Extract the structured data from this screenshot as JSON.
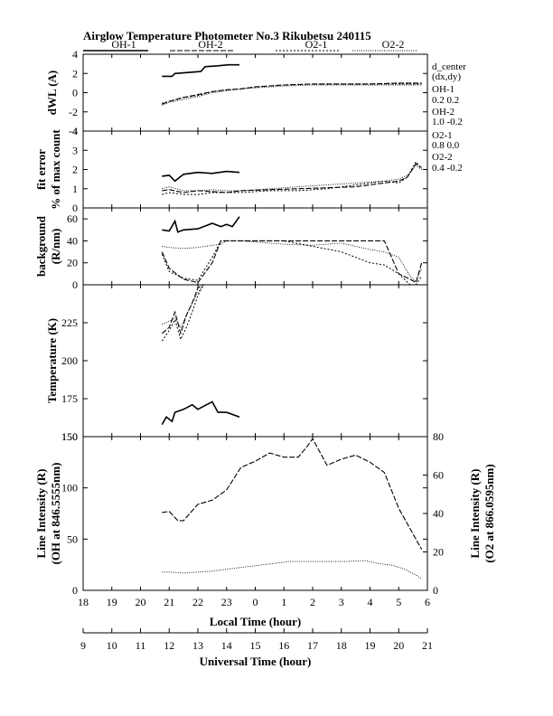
{
  "header": {
    "title": "Airglow Temperature Photometer No.3   Rikubetsu    240115"
  },
  "legend": [
    {
      "name": "OH-1",
      "dash": ""
    },
    {
      "name": "OH-2",
      "dash": "6,2"
    },
    {
      "name": "O2-1",
      "dash": "2,2"
    },
    {
      "name": "O2-2",
      "dash": "1,1.5"
    }
  ],
  "side_text": {
    "dcenter": "d_center",
    "dxdy": "(dx,dy)",
    "oh1_label": "OH-1",
    "oh1_values": "0.2   0.2",
    "oh2_label": "OH-2",
    "oh2_values": "1.0   -0.2",
    "o21_label": "O2-1",
    "o21_values": "0.8   0.0",
    "o22_label": "O2-2",
    "o22_values": "0.4   -0.2"
  },
  "axes": {
    "lt_ticks": [
      "18",
      "19",
      "20",
      "21",
      "22",
      "23",
      "0",
      "1",
      "2",
      "3",
      "4",
      "5",
      "6"
    ],
    "ut_ticks": [
      "9",
      "10",
      "11",
      "12",
      "13",
      "14",
      "15",
      "16",
      "17",
      "18",
      "19",
      "20",
      "21"
    ],
    "xlabel_lt": "Local Time (hour)",
    "xlabel_ut": "Universal Time (hour)"
  },
  "chart_data": [
    {
      "type": "line",
      "panel": "dwl",
      "ylabel": "dWL (A)",
      "ylim": [
        -4,
        4
      ],
      "yticks": [
        "4",
        "2",
        "0",
        "-2",
        "-4"
      ],
      "ytick_values": [
        4,
        2,
        0,
        -2,
        -4
      ],
      "series": [
        {
          "name": "OH-1",
          "x": [
            20.75,
            21.1,
            21.2,
            22.1,
            22.25,
            22.7,
            23.05,
            23.45
          ],
          "y": [
            1.7,
            1.7,
            2.0,
            2.2,
            2.7,
            2.8,
            2.9,
            2.9
          ]
        },
        {
          "name": "OH-2",
          "x": [
            20.75,
            21.0,
            21.5,
            22.0,
            22.5,
            23.0,
            23.5,
            24.0,
            25.0,
            26.0,
            27.0,
            28.0,
            29.0,
            29.8
          ],
          "y": [
            -1.2,
            -0.9,
            -0.5,
            -0.2,
            0.1,
            0.3,
            0.4,
            0.6,
            0.8,
            0.9,
            0.9,
            0.9,
            1.0,
            1.0
          ]
        },
        {
          "name": "O2-1",
          "x": [
            20.75,
            21.0,
            21.5,
            22.0,
            22.5,
            23.0,
            23.5,
            24.0,
            25.0,
            26.0,
            27.0,
            28.0,
            29.0,
            29.8
          ],
          "y": [
            -1.1,
            -0.9,
            -0.5,
            -0.3,
            0.1,
            0.3,
            0.4,
            0.6,
            0.8,
            0.9,
            0.9,
            0.9,
            0.9,
            0.9
          ]
        },
        {
          "name": "O2-2",
          "x": [
            20.75,
            21.0,
            21.5,
            22.0,
            22.5,
            23.0,
            23.5,
            24.0,
            25.0,
            26.0,
            27.0,
            28.0,
            29.0,
            29.8
          ],
          "y": [
            -1.3,
            -1.0,
            -0.7,
            -0.4,
            0.0,
            0.2,
            0.4,
            0.5,
            0.7,
            0.8,
            0.8,
            0.8,
            0.8,
            0.8
          ]
        }
      ]
    },
    {
      "type": "line",
      "panel": "fit",
      "ylabel": "fit error",
      "ylabel2": "% of max count",
      "ylim": [
        0,
        4
      ],
      "yticks": [
        "4",
        "3",
        "2",
        "1",
        "0"
      ],
      "ytick_values": [
        4,
        3,
        2,
        1,
        0
      ],
      "series": [
        {
          "name": "OH-1",
          "x": [
            20.75,
            21.0,
            21.2,
            21.5,
            22.0,
            22.5,
            23.0,
            23.45
          ],
          "y": [
            1.65,
            1.7,
            1.4,
            1.75,
            1.85,
            1.8,
            1.9,
            1.85
          ]
        },
        {
          "name": "OH-2",
          "x": [
            20.75,
            21.0,
            21.5,
            22.0,
            22.5,
            23.0,
            23.5,
            24.5,
            25.5,
            26.5,
            27.5,
            28.5,
            29.0,
            29.3,
            29.6,
            29.8
          ],
          "y": [
            0.9,
            0.95,
            0.8,
            0.9,
            0.85,
            0.8,
            0.9,
            0.95,
            1.0,
            1.05,
            1.1,
            1.3,
            1.4,
            1.6,
            2.3,
            2.1
          ]
        },
        {
          "name": "O2-1",
          "x": [
            20.75,
            21.0,
            21.5,
            22.0,
            22.5,
            23.0,
            23.5,
            24.5,
            25.5,
            26.5,
            27.5,
            28.5,
            29.0,
            29.3,
            29.6,
            29.8
          ],
          "y": [
            0.7,
            0.8,
            0.7,
            0.7,
            0.8,
            0.8,
            0.8,
            0.9,
            0.9,
            1.0,
            1.2,
            1.4,
            1.3,
            1.6,
            2.4,
            2.0
          ]
        },
        {
          "name": "O2-2",
          "x": [
            20.75,
            21.0,
            21.5,
            22.0,
            22.5,
            23.0,
            23.5,
            24.5,
            25.5,
            26.5,
            27.5,
            28.5,
            29.0,
            29.3,
            29.6,
            29.8
          ],
          "y": [
            1.0,
            1.1,
            0.9,
            0.9,
            0.95,
            0.9,
            0.9,
            1.0,
            1.1,
            1.2,
            1.3,
            1.4,
            1.5,
            1.7,
            2.2,
            2.0
          ]
        }
      ]
    },
    {
      "type": "line",
      "panel": "bg",
      "ylabel": "background",
      "ylabel2": "(R/nm)",
      "ylim": [
        0,
        70
      ],
      "yticks": [
        "60",
        "40",
        "20",
        "0"
      ],
      "ytick_values": [
        60,
        40,
        20,
        0
      ],
      "series": [
        {
          "name": "OH-1",
          "x": [
            20.75,
            21.0,
            21.2,
            21.3,
            21.5,
            22.0,
            22.5,
            22.8,
            23.0,
            23.2,
            23.45
          ],
          "y": [
            50,
            49,
            58,
            48,
            50,
            51,
            56,
            53,
            55,
            53,
            62
          ]
        },
        {
          "name": "OH-2",
          "x": [
            20.75,
            21.0,
            21.5,
            22.0,
            22.5,
            22.8,
            23.0,
            23.5,
            25.0,
            26.0,
            27.0,
            28.0,
            28.5,
            29.0,
            29.4,
            29.6,
            29.8
          ],
          "y": [
            30,
            15,
            5,
            2,
            20,
            40,
            40,
            40,
            40,
            40,
            40,
            40,
            40,
            10,
            5,
            2,
            20
          ]
        },
        {
          "name": "O2-1",
          "x": [
            20.75,
            21.0,
            21.5,
            22.0,
            22.5,
            22.8,
            23.0,
            23.5,
            25.0,
            26.0,
            27.0,
            28.0,
            28.5,
            29.0,
            29.4,
            29.6,
            29.8
          ],
          "y": [
            28,
            12,
            6,
            4,
            25,
            40,
            40,
            40,
            40,
            35,
            30,
            20,
            18,
            10,
            0,
            0,
            8
          ]
        },
        {
          "name": "O2-2",
          "x": [
            20.75,
            21.0,
            21.5,
            22.0,
            22.5,
            22.8,
            23.0,
            23.5,
            25.0,
            26.0,
            27.0,
            28.0,
            28.5,
            29.0,
            29.4,
            29.6,
            29.8
          ],
          "y": [
            35,
            34,
            33,
            34,
            36,
            37,
            40,
            40,
            37,
            36,
            38,
            32,
            30,
            25,
            8,
            3,
            15
          ]
        }
      ]
    },
    {
      "type": "line",
      "panel": "temp",
      "ylabel": "Temperature (K)",
      "ylim": [
        150,
        250
      ],
      "yticks": [
        "225",
        "200",
        "175",
        "150"
      ],
      "ytick_values": [
        225,
        200,
        175,
        150
      ],
      "series": [
        {
          "name": "OH-1",
          "x": [
            20.75,
            20.9,
            21.1,
            21.2,
            21.5,
            21.8,
            22.0,
            22.3,
            22.5,
            22.7,
            23.0,
            23.45
          ],
          "y": [
            158,
            163,
            160,
            166,
            168,
            171,
            168,
            171,
            173,
            166,
            166,
            163
          ]
        },
        {
          "name": "OH-2",
          "x": [
            20.75,
            21.0,
            21.2,
            21.4,
            21.6,
            21.8,
            22.0,
            22.2,
            22.4,
            22.6,
            22.8,
            23.0
          ],
          "y": [
            218,
            222,
            232,
            218,
            230,
            238,
            248,
            250,
            250,
            250,
            250,
            250
          ]
        },
        {
          "name": "O2-1",
          "x": [
            20.75,
            21.0,
            21.2,
            21.4,
            21.6,
            21.8,
            22.0,
            22.2,
            22.4,
            22.6,
            22.8,
            23.0
          ],
          "y": [
            213,
            220,
            227,
            214,
            222,
            232,
            243,
            250,
            250,
            250,
            250,
            250
          ]
        },
        {
          "name": "O2-2",
          "x": [
            20.75,
            21.0,
            21.2,
            21.4,
            21.6,
            21.8,
            22.0,
            22.2,
            22.4,
            22.6,
            22.8,
            23.0
          ],
          "y": [
            224,
            226,
            228,
            222,
            230,
            238,
            245,
            250,
            250,
            250,
            250,
            250
          ]
        }
      ]
    },
    {
      "type": "line",
      "panel": "intensity",
      "ylabel": "Line Intensity (R)",
      "ylabel2": "(OH at 846.5555nm)",
      "ylabel_right": "Line Intensity (R)",
      "ylabel_right2": "(O2 at 866.0595nm)",
      "ylim": [
        0,
        150
      ],
      "yticks": [
        "150",
        "100",
        "50",
        "0"
      ],
      "ytick_values": [
        150,
        100,
        50,
        0
      ],
      "ylim_right": [
        0,
        80
      ],
      "yticks_right": [
        "80",
        "60",
        "40",
        "20",
        "0"
      ],
      "ytick_values_right": [
        80,
        60,
        40,
        20,
        0
      ],
      "series": [
        {
          "name": "OH-2",
          "x": [
            20.75,
            21.0,
            21.3,
            21.5,
            22.0,
            22.5,
            23.0,
            23.5,
            24.0,
            24.5,
            25.0,
            25.5,
            25.8,
            26.0,
            26.5,
            27.0,
            27.5,
            28.0,
            28.5,
            29.0,
            29.5,
            29.8
          ],
          "y": [
            76,
            77,
            68,
            68,
            84,
            88,
            98,
            120,
            126,
            134,
            130,
            130,
            140,
            148,
            122,
            128,
            132,
            125,
            115,
            80,
            55,
            40
          ]
        },
        {
          "name": "O2-2",
          "x": [
            20.75,
            21.0,
            21.5,
            22.0,
            22.5,
            23.0,
            25.2,
            25.6,
            26.8,
            27.2,
            27.8,
            28.3,
            28.8,
            29.2,
            29.6,
            29.8
          ],
          "y": [
            9.5,
            9.5,
            9,
            9.5,
            10,
            11,
            15,
            15,
            15,
            15,
            15.5,
            14,
            13,
            11,
            8,
            6
          ]
        }
      ]
    }
  ]
}
